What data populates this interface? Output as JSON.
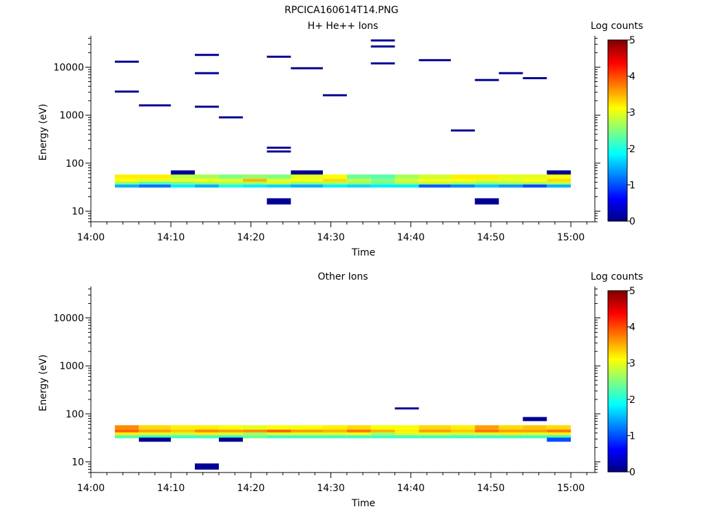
{
  "figure_title": "RPCICA160614T14.PNG",
  "chart_data": [
    {
      "type": "heatmap",
      "title": "H+ He++ Ions",
      "xlabel": "Time",
      "ylabel": "Energy (eV)",
      "colorbar_label": "Log counts",
      "colorbar_ticks": [
        "0",
        "1",
        "2",
        "3",
        "4",
        "5"
      ],
      "clim": [
        0,
        5
      ],
      "xlim": [
        "14:00",
        "15:03"
      ],
      "xticks": [
        "14:00",
        "14:10",
        "14:20",
        "14:30",
        "14:40",
        "14:50",
        "15:00"
      ],
      "y_scale": "log",
      "ylim": [
        6,
        45000
      ],
      "yticks": [
        "10",
        "100",
        "1000",
        "10000"
      ],
      "time_bins": [
        "14:03",
        "14:06",
        "14:10",
        "14:13",
        "14:16",
        "14:19",
        "14:22",
        "14:25",
        "14:29",
        "14:32",
        "14:35",
        "14:38",
        "14:41",
        "14:45",
        "14:48",
        "14:51",
        "14:54",
        "14:57",
        "15:00"
      ],
      "energy_rows": [
        {
          "energy_ev": 51,
          "log_counts": [
            3.2,
            3.2,
            2.8,
            2.7,
            2.5,
            2.6,
            2.5,
            3.0,
            3.1,
            2.4,
            2.3,
            2.7,
            2.9,
            3.2,
            3.2,
            3.0,
            3.0,
            3.1
          ]
        },
        {
          "energy_ev": 44,
          "log_counts": [
            3.1,
            3.0,
            3.0,
            3.1,
            3.0,
            3.5,
            3.0,
            3.1,
            3.3,
            2.8,
            2.5,
            2.9,
            3.1,
            3.1,
            3.0,
            3.0,
            3.1,
            3.3
          ]
        },
        {
          "energy_ev": 39,
          "log_counts": [
            2.6,
            2.3,
            2.5,
            2.6,
            2.7,
            2.7,
            2.9,
            2.6,
            2.7,
            2.6,
            2.4,
            2.7,
            2.8,
            2.7,
            2.6,
            2.7,
            2.7,
            2.8
          ]
        },
        {
          "energy_ev": 34,
          "log_counts": [
            1.5,
            1.2,
            1.8,
            1.5,
            2.0,
            1.8,
            1.7,
            1.5,
            1.8,
            1.7,
            1.8,
            1.8,
            1.1,
            1.3,
            1.6,
            1.4,
            1.0,
            1.5
          ]
        }
      ],
      "sparse_hits": [
        {
          "t0": "14:03",
          "t1": "14:06",
          "energy_ev": 13000,
          "log_counts": 0.1
        },
        {
          "t0": "14:03",
          "t1": "14:06",
          "energy_ev": 3100,
          "log_counts": 0.1
        },
        {
          "t0": "14:06",
          "t1": "14:10",
          "energy_ev": 1600,
          "log_counts": 0.1
        },
        {
          "t0": "14:10",
          "t1": "14:13",
          "energy_ev": 64,
          "log_counts": 0.1
        },
        {
          "t0": "14:13",
          "t1": "14:16",
          "energy_ev": 18000,
          "log_counts": 0.1
        },
        {
          "t0": "14:13",
          "t1": "14:16",
          "energy_ev": 7500,
          "log_counts": 0.1
        },
        {
          "t0": "14:13",
          "t1": "14:16",
          "energy_ev": 1500,
          "log_counts": 0.1
        },
        {
          "t0": "14:16",
          "t1": "14:19",
          "energy_ev": 900,
          "log_counts": 0.1
        },
        {
          "t0": "14:22",
          "t1": "14:25",
          "energy_ev": 16500,
          "log_counts": 0.1
        },
        {
          "t0": "14:22",
          "t1": "14:25",
          "energy_ev": 210,
          "log_counts": 0.1
        },
        {
          "t0": "14:22",
          "t1": "14:25",
          "energy_ev": 175,
          "log_counts": 0.1
        },
        {
          "t0": "14:22",
          "t1": "14:25",
          "energy_ev": 16,
          "log_counts": 0.1
        },
        {
          "t0": "14:25",
          "t1": "14:29",
          "energy_ev": 9500,
          "log_counts": 0.1
        },
        {
          "t0": "14:25",
          "t1": "14:29",
          "energy_ev": 64,
          "log_counts": 0.1
        },
        {
          "t0": "14:29",
          "t1": "14:32",
          "energy_ev": 2600,
          "log_counts": 0.1
        },
        {
          "t0": "14:35",
          "t1": "14:38",
          "energy_ev": 36000,
          "log_counts": 0.1
        },
        {
          "t0": "14:35",
          "t1": "14:38",
          "energy_ev": 27000,
          "log_counts": 0.1
        },
        {
          "t0": "14:35",
          "t1": "14:38",
          "energy_ev": 12000,
          "log_counts": 0.1
        },
        {
          "t0": "14:41",
          "t1": "14:45",
          "energy_ev": 14000,
          "log_counts": 0.1
        },
        {
          "t0": "14:45",
          "t1": "14:48",
          "energy_ev": 480,
          "log_counts": 0.1
        },
        {
          "t0": "14:48",
          "t1": "14:51",
          "energy_ev": 5400,
          "log_counts": 0.1
        },
        {
          "t0": "14:48",
          "t1": "14:51",
          "energy_ev": 16,
          "log_counts": 0.1
        },
        {
          "t0": "14:51",
          "t1": "14:54",
          "energy_ev": 7500,
          "log_counts": 0.1
        },
        {
          "t0": "14:54",
          "t1": "14:57",
          "energy_ev": 5900,
          "log_counts": 0.1
        },
        {
          "t0": "14:57",
          "t1": "15:00",
          "energy_ev": 64,
          "log_counts": 0.1
        }
      ]
    },
    {
      "type": "heatmap",
      "title": "Other Ions",
      "xlabel": "Time",
      "ylabel": "Energy (eV)",
      "colorbar_label": "Log counts",
      "colorbar_ticks": [
        "0",
        "1",
        "2",
        "3",
        "4",
        "5"
      ],
      "clim": [
        0,
        5
      ],
      "xlim": [
        "14:00",
        "15:03"
      ],
      "xticks": [
        "14:00",
        "14:10",
        "14:20",
        "14:30",
        "14:40",
        "14:50",
        "15:00"
      ],
      "y_scale": "log",
      "ylim": [
        6,
        45000
      ],
      "yticks": [
        "10",
        "100",
        "1000",
        "10000"
      ],
      "time_bins": [
        "14:03",
        "14:06",
        "14:10",
        "14:13",
        "14:16",
        "14:19",
        "14:22",
        "14:25",
        "14:29",
        "14:32",
        "14:35",
        "14:38",
        "14:41",
        "14:45",
        "14:48",
        "14:51",
        "14:54",
        "14:57",
        "15:00"
      ],
      "energy_rows": [
        {
          "energy_ev": 51,
          "log_counts": [
            3.7,
            3.3,
            3.2,
            3.2,
            3.1,
            3.0,
            3.1,
            3.1,
            3.2,
            3.3,
            3.1,
            3.1,
            3.3,
            3.2,
            3.6,
            3.3,
            3.4,
            3.3
          ]
        },
        {
          "energy_ev": 44,
          "log_counts": [
            3.9,
            3.6,
            3.4,
            3.7,
            3.6,
            3.7,
            3.9,
            3.6,
            3.5,
            3.8,
            3.5,
            3.2,
            3.6,
            3.4,
            3.8,
            3.6,
            3.6,
            3.8
          ]
        },
        {
          "energy_ev": 39,
          "log_counts": [
            3.2,
            3.0,
            2.9,
            3.2,
            3.0,
            2.7,
            3.0,
            3.0,
            3.0,
            3.1,
            2.7,
            3.0,
            3.0,
            2.9,
            3.0,
            3.2,
            3.0,
            3.2
          ]
        },
        {
          "energy_ev": 34,
          "log_counts": [
            2.3,
            2.2,
            2.2,
            2.2,
            2.2,
            2.4,
            2.2,
            2.2,
            2.2,
            2.2,
            2.2,
            2.2,
            2.2,
            2.2,
            2.2,
            2.2,
            2.2,
            2.2
          ]
        }
      ],
      "sparse_hits": [
        {
          "t0": "14:06",
          "t1": "14:10",
          "energy_ev": 29,
          "log_counts": 0.1
        },
        {
          "t0": "14:13",
          "t1": "14:16",
          "energy_ev": 8,
          "log_counts": 0.1
        },
        {
          "t0": "14:16",
          "t1": "14:19",
          "energy_ev": 29,
          "log_counts": 0.1
        },
        {
          "t0": "14:38",
          "t1": "14:41",
          "energy_ev": 130,
          "log_counts": 0.1
        },
        {
          "t0": "14:54",
          "t1": "14:57",
          "energy_ev": 78,
          "log_counts": 0.1
        },
        {
          "t0": "14:57",
          "t1": "15:00",
          "energy_ev": 29,
          "log_counts": 1.0
        }
      ]
    }
  ]
}
